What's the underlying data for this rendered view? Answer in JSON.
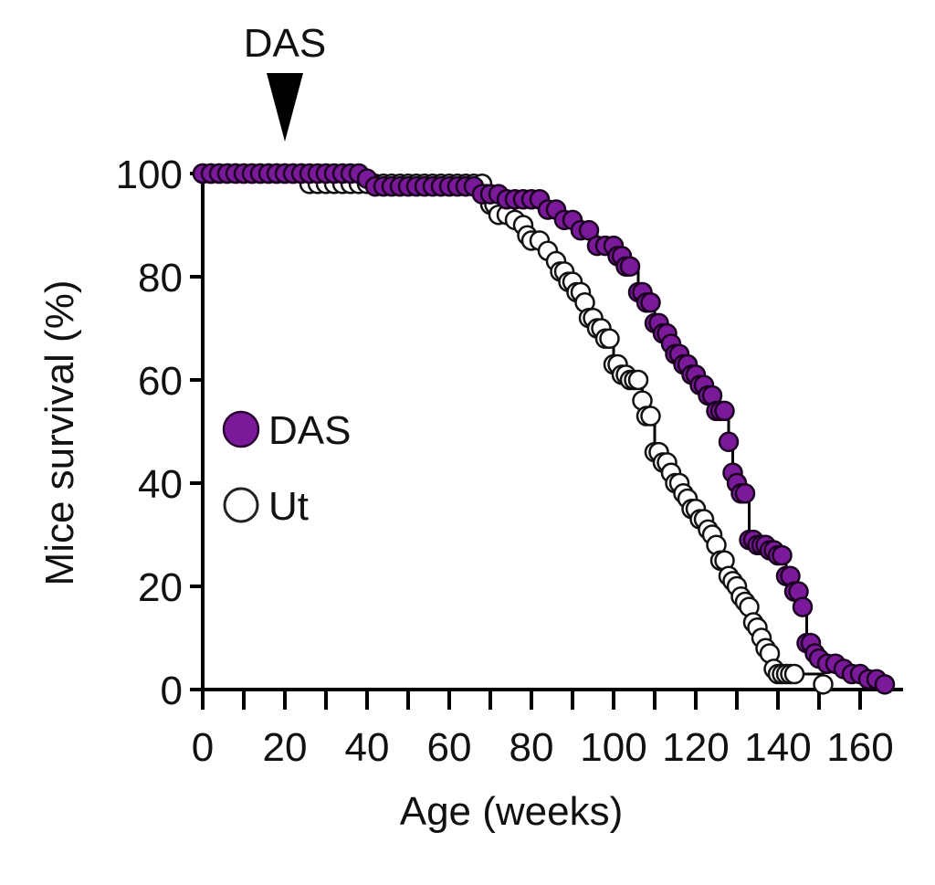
{
  "chart_data": {
    "type": "scatter",
    "subtype": "kaplan-meier-survival",
    "title": "",
    "xlabel": "Age (weeks)",
    "ylabel": "Mice survival (%)",
    "xlim": [
      0,
      170
    ],
    "ylim": [
      0,
      100
    ],
    "x_ticks": [
      0,
      20,
      40,
      60,
      80,
      100,
      120,
      140,
      160
    ],
    "x_tick_labels": [
      "0",
      "20",
      "40",
      "60",
      "80",
      "100",
      "120",
      "140",
      "160"
    ],
    "x_minor_step": 10,
    "y_ticks": [
      0,
      20,
      40,
      60,
      80,
      100
    ],
    "y_tick_labels": [
      "0",
      "20",
      "40",
      "60",
      "80",
      "100"
    ],
    "grid": false,
    "legend_position": "center-left",
    "annotations": [
      {
        "text": "DAS",
        "x": 20,
        "marker": "downward-triangle",
        "position": "above-plot"
      }
    ],
    "series": [
      {
        "name": "DAS",
        "marker_fill": "#7a1a9a",
        "marker_stroke": "#1a001f",
        "x": [
          0,
          2,
          4,
          6,
          8,
          10,
          12,
          14,
          16,
          18,
          20,
          22,
          24,
          26,
          28,
          30,
          32,
          34,
          36,
          38,
          40,
          42,
          44,
          46,
          48,
          50,
          52,
          54,
          56,
          58,
          60,
          62,
          64,
          66,
          68,
          70,
          72,
          74,
          76,
          78,
          80,
          82,
          84,
          86,
          88,
          90,
          92,
          94,
          96,
          98,
          100,
          101,
          102,
          103,
          104,
          106,
          107,
          108,
          109,
          110,
          111,
          112,
          113,
          114,
          115,
          116,
          117,
          118,
          119,
          120,
          121,
          122,
          123,
          124,
          125,
          126,
          127,
          128,
          129,
          130,
          131,
          132,
          133,
          134,
          135,
          136,
          137,
          138,
          139,
          140,
          141,
          142,
          143,
          144,
          145,
          146,
          147,
          148,
          149,
          150,
          152,
          154,
          156,
          158,
          160,
          162,
          164,
          166
        ],
        "y": [
          100,
          100,
          100,
          100,
          100,
          100,
          100,
          100,
          100,
          100,
          100,
          100,
          100,
          100,
          100,
          100,
          100,
          100,
          100,
          100,
          99,
          97.5,
          97.5,
          97.5,
          97.5,
          97.5,
          97.5,
          97.5,
          97.5,
          97.5,
          97.5,
          97.5,
          97.5,
          97.5,
          96,
          96,
          96,
          95,
          95,
          95,
          95,
          95,
          93,
          93,
          91,
          91,
          89,
          89,
          86,
          86,
          86,
          84,
          84,
          82,
          82,
          77,
          77,
          75,
          75,
          71,
          71,
          69,
          69,
          67,
          65,
          65,
          63,
          63,
          61,
          61,
          59,
          59,
          57,
          57,
          54,
          54,
          54,
          48,
          42,
          40,
          38,
          38,
          29,
          29,
          28,
          28,
          28,
          27,
          27,
          26,
          26,
          22,
          22,
          19,
          19,
          16,
          9,
          9,
          7,
          6,
          5,
          5,
          4,
          3,
          3,
          2,
          2,
          1
        ]
      },
      {
        "name": "Ut",
        "marker_fill": "#ffffff",
        "marker_stroke": "#111111",
        "x": [
          0,
          2,
          4,
          6,
          8,
          10,
          12,
          14,
          16,
          18,
          20,
          22,
          24,
          26,
          28,
          30,
          32,
          34,
          36,
          38,
          40,
          42,
          44,
          46,
          48,
          50,
          52,
          54,
          56,
          58,
          60,
          62,
          64,
          66,
          68,
          69,
          70,
          71,
          72,
          74,
          76,
          78,
          79,
          80,
          82,
          84,
          86,
          87,
          88,
          89,
          90,
          91,
          92,
          93,
          94,
          95,
          96,
          97,
          98,
          99,
          100,
          101,
          102,
          103,
          104,
          105,
          106,
          107,
          108,
          109,
          110,
          111,
          112,
          113,
          114,
          115,
          116,
          117,
          118,
          119,
          120,
          121,
          122,
          123,
          124,
          125,
          126,
          127,
          128,
          129,
          130,
          131,
          132,
          133,
          134,
          135,
          136,
          137,
          138,
          139,
          140,
          141,
          142,
          143,
          144,
          151
        ],
        "y": [
          100,
          100,
          100,
          100,
          100,
          100,
          100,
          100,
          100,
          100,
          100,
          100,
          100,
          98,
          98,
          98,
          98,
          98,
          98,
          98,
          98,
          98,
          98,
          98,
          98,
          98,
          98,
          98,
          98,
          98,
          98,
          98,
          98,
          98,
          98,
          96,
          94,
          94,
          92,
          92,
          91,
          90,
          88,
          87,
          87,
          85,
          83,
          81,
          81,
          79,
          79,
          77,
          77,
          75,
          72,
          72,
          70,
          70,
          68,
          68,
          63,
          63,
          61,
          61,
          60,
          60,
          60,
          56,
          53,
          53,
          46,
          46,
          44,
          44,
          42,
          40,
          40,
          38,
          37,
          35,
          35,
          33,
          33,
          31,
          30,
          28,
          25,
          25,
          22,
          21,
          20,
          18,
          17,
          16,
          13,
          12,
          10,
          8,
          7,
          4,
          3,
          3,
          3,
          3,
          3,
          1
        ]
      }
    ]
  },
  "legend": {
    "items": [
      {
        "label": "DAS",
        "marker": "filled-circle"
      },
      {
        "label": "Ut",
        "marker": "open-circle"
      }
    ]
  },
  "annotation": {
    "label": "DAS"
  }
}
